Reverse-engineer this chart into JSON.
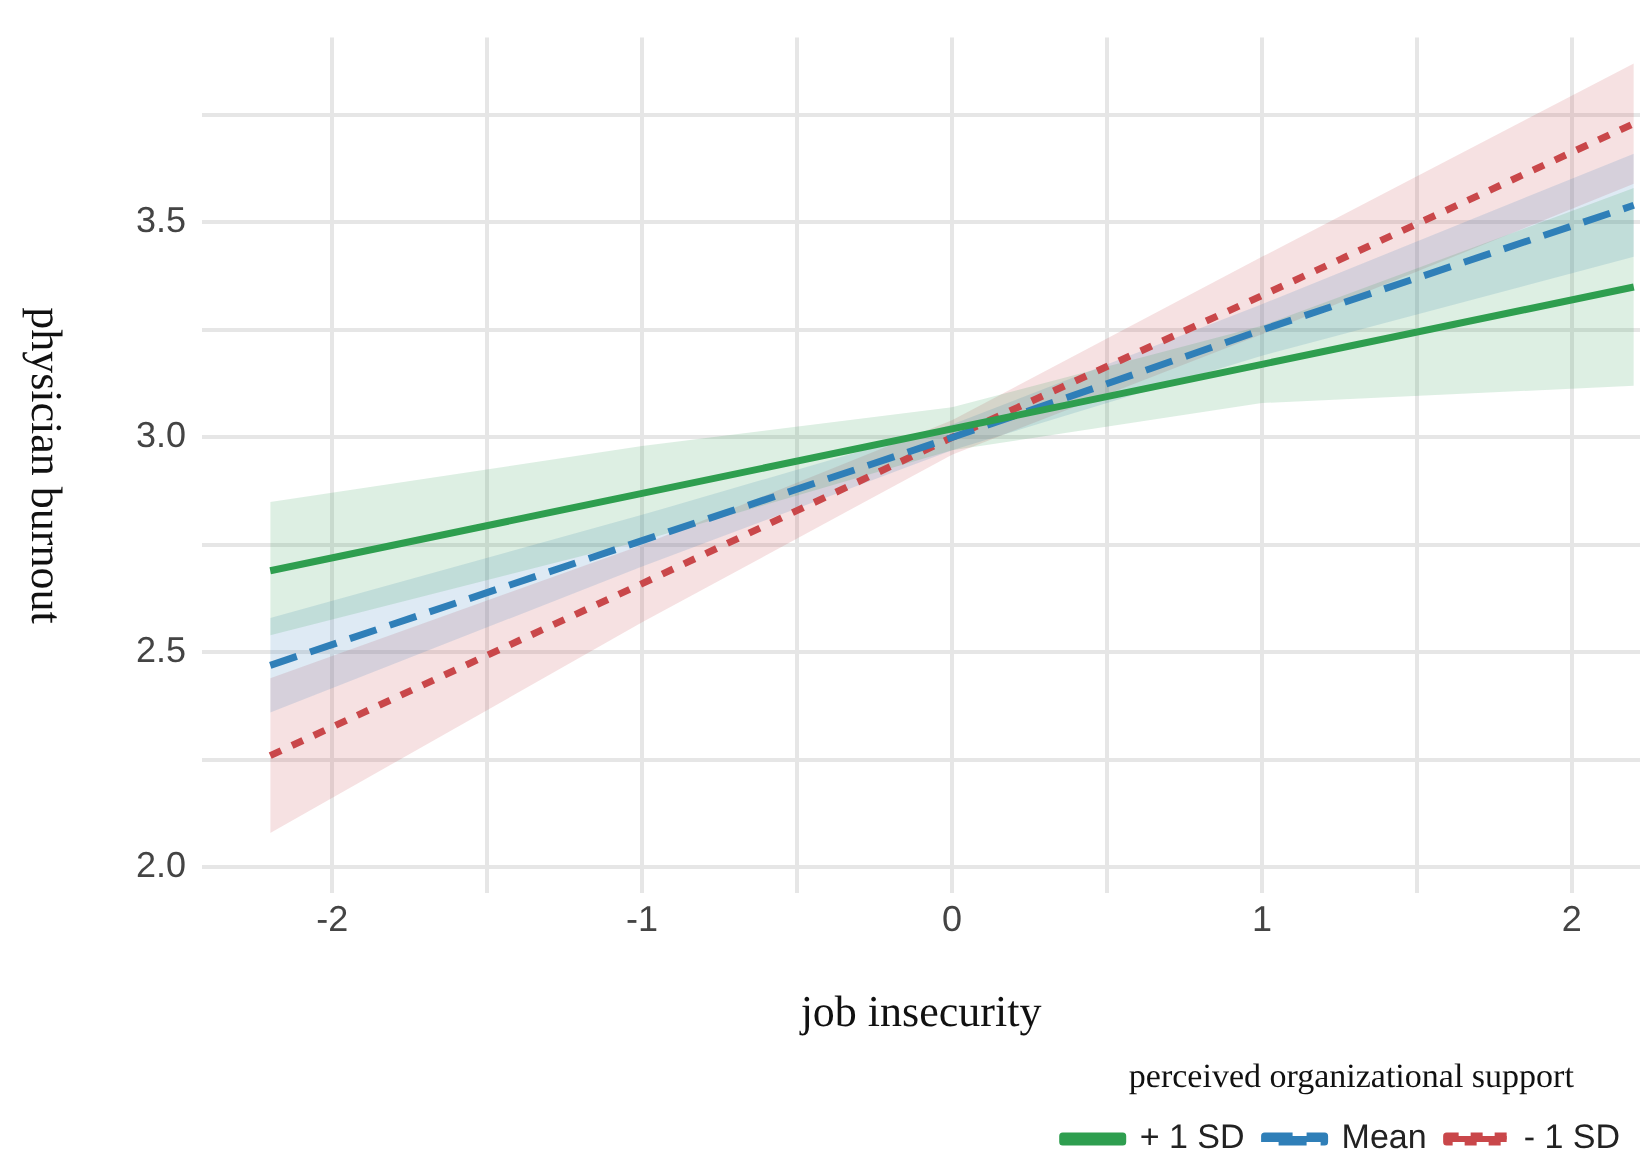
{
  "chart_data": {
    "type": "line",
    "xlabel": "job insecurity",
    "ylabel": "physician burnout",
    "legend_title": "perceived organizational support",
    "x": [
      -2.2,
      -1,
      0,
      1,
      2.2
    ],
    "series": [
      {
        "name": "+ 1 SD",
        "color": "#2e9e4f",
        "line_style": "solid",
        "values": [
          2.69,
          2.87,
          3.02,
          3.17,
          3.35
        ],
        "lower": [
          2.54,
          2.76,
          2.97,
          3.08,
          3.12
        ],
        "upper": [
          2.85,
          2.98,
          3.07,
          3.26,
          3.58
        ]
      },
      {
        "name": "Mean",
        "color": "#2f7fb8",
        "line_style": "dashed",
        "values": [
          2.47,
          2.76,
          3.0,
          3.25,
          3.54
        ],
        "lower": [
          2.36,
          2.7,
          2.97,
          3.19,
          3.42
        ],
        "upper": [
          2.58,
          2.82,
          3.03,
          3.31,
          3.66
        ]
      },
      {
        "name": "- 1 SD",
        "color": "#c9474a",
        "line_style": "dotted",
        "values": [
          2.26,
          2.66,
          3.0,
          3.33,
          3.73
        ],
        "lower": [
          2.08,
          2.57,
          2.96,
          3.24,
          3.59
        ],
        "upper": [
          2.44,
          2.75,
          3.04,
          3.42,
          3.87
        ]
      }
    ],
    "xlim": [
      -2.42,
      2.22
    ],
    "xticks": [
      -2,
      {
        "value": -1.5,
        "label": null
      },
      -1,
      {
        "value": -0.5,
        "label": null
      },
      0,
      {
        "value": 0.5,
        "label": null
      },
      1,
      {
        "value": 1.5,
        "label": null
      },
      2
    ],
    "ylim": [
      1.94,
      3.93
    ],
    "yticks": [
      {
        "value": 2,
        "label": "2.0"
      },
      {
        "value": 2.25,
        "label": null
      },
      {
        "value": 2.5,
        "label": "2.5"
      },
      {
        "value": 2.75,
        "label": null
      },
      {
        "value": 3,
        "label": "3.0"
      },
      {
        "value": 3.25,
        "label": null
      },
      {
        "value": 3.5,
        "label": "3.5"
      },
      {
        "value": 3.75,
        "label": null
      }
    ],
    "grid": true,
    "legend": "bottom",
    "marker": "none"
  }
}
